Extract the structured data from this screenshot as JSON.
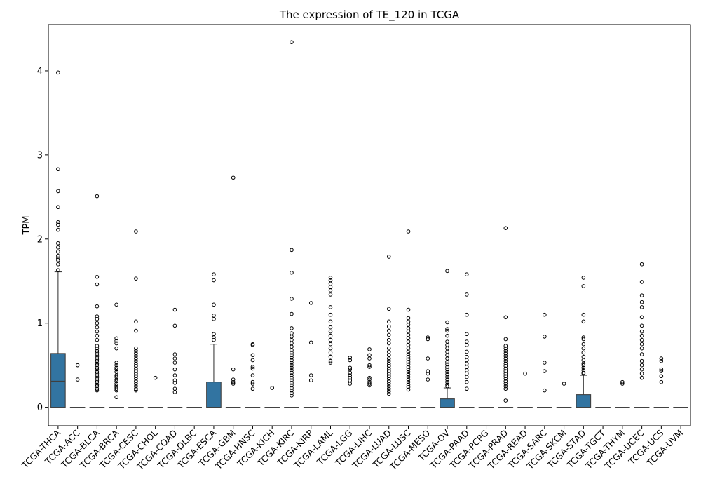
{
  "chart_data": {
    "type": "box",
    "title": "The expression of TE_120 in TCGA",
    "xlabel": "",
    "ylabel": "TPM",
    "ylim": [
      -0.22,
      4.55
    ],
    "yticks": [
      0,
      1,
      2,
      3,
      4
    ],
    "box_color": "#3274a1",
    "categories": [
      "TCGA-THCA",
      "TCGA-ACC",
      "TCGA-BLCA",
      "TCGA-BRCA",
      "TCGA-CESC",
      "TCGA-CHOL",
      "TCGA-COAD",
      "TCGA-DLBC",
      "TCGA-ESCA",
      "TCGA-GBM",
      "TCGA-HNSC",
      "TCGA-KICH",
      "TCGA-KIRC",
      "TCGA-KIRP",
      "TCGA-LAML",
      "TCGA-LGG",
      "TCGA-LIHC",
      "TCGA-LUAD",
      "TCGA-LUSC",
      "TCGA-MESO",
      "TCGA-OV",
      "TCGA-PAAD",
      "TCGA-PCPG",
      "TCGA-PRAD",
      "TCGA-READ",
      "TCGA-SARC",
      "TCGA-SKCM",
      "TCGA-STAD",
      "TCGA-TGCT",
      "TCGA-THYM",
      "TCGA-UCEC",
      "TCGA-UCS",
      "TCGA-UVM"
    ],
    "boxes": [
      {
        "q1": 0,
        "median": 0.31,
        "q3": 0.64,
        "whislo": 0,
        "whishi": 1.61,
        "fliers": [
          3.98,
          2.83,
          2.57,
          2.38,
          2.2,
          2.17,
          2.11,
          1.95,
          1.9,
          1.85,
          1.8,
          1.77,
          1.75,
          1.7,
          1.63
        ]
      },
      {
        "q1": 0,
        "median": 0,
        "q3": 0,
        "whislo": 0,
        "whishi": 0,
        "fliers": [
          0.5,
          0.33
        ]
      },
      {
        "q1": 0,
        "median": 0,
        "q3": 0,
        "whislo": 0,
        "whishi": 0,
        "fliers": [
          2.51,
          1.55,
          1.46,
          1.2,
          1.08,
          1.05,
          1.0,
          0.95,
          0.9,
          0.85,
          0.8,
          0.73,
          0.7,
          0.67,
          0.65,
          0.62,
          0.6,
          0.57,
          0.55,
          0.52,
          0.5,
          0.47,
          0.45,
          0.42,
          0.4,
          0.37,
          0.35,
          0.32,
          0.3,
          0.27,
          0.25,
          0.22,
          0.2
        ]
      },
      {
        "q1": 0,
        "median": 0,
        "q3": 0,
        "whislo": 0,
        "whishi": 0,
        "fliers": [
          1.22,
          0.82,
          0.79,
          0.76,
          0.7,
          0.53,
          0.5,
          0.47,
          0.45,
          0.42,
          0.38,
          0.36,
          0.33,
          0.31,
          0.28,
          0.26,
          0.24,
          0.22,
          0.2,
          0.12
        ]
      },
      {
        "q1": 0,
        "median": 0,
        "q3": 0,
        "whislo": 0,
        "whishi": 0,
        "fliers": [
          2.09,
          1.53,
          1.02,
          0.91,
          0.7,
          0.67,
          0.64,
          0.61,
          0.58,
          0.55,
          0.52,
          0.49,
          0.46,
          0.43,
          0.4,
          0.37,
          0.34,
          0.31,
          0.28,
          0.25,
          0.22,
          0.2
        ]
      },
      {
        "q1": 0,
        "median": 0,
        "q3": 0,
        "whislo": 0,
        "whishi": 0,
        "fliers": [
          0.35
        ]
      },
      {
        "q1": 0,
        "median": 0,
        "q3": 0,
        "whislo": 0,
        "whishi": 0,
        "fliers": [
          1.16,
          0.97,
          0.63,
          0.58,
          0.53,
          0.45,
          0.38,
          0.32,
          0.29,
          0.22,
          0.18
        ]
      },
      {
        "q1": 0,
        "median": 0,
        "q3": 0,
        "whislo": 0,
        "whishi": 0,
        "fliers": []
      },
      {
        "q1": 0,
        "median": 0,
        "q3": 0.3,
        "whislo": 0,
        "whishi": 0.75,
        "fliers": [
          1.58,
          1.51,
          1.22,
          1.09,
          1.05,
          0.87,
          0.83,
          0.8
        ]
      },
      {
        "q1": 0,
        "median": 0,
        "q3": 0,
        "whislo": 0,
        "whishi": 0,
        "fliers": [
          2.73,
          0.45,
          0.33,
          0.3,
          0.28
        ]
      },
      {
        "q1": 0,
        "median": 0,
        "q3": 0,
        "whislo": 0,
        "whishi": 0,
        "fliers": [
          0.75,
          0.74,
          0.62,
          0.56,
          0.48,
          0.46,
          0.38,
          0.3,
          0.28,
          0.22
        ]
      },
      {
        "q1": 0,
        "median": 0,
        "q3": 0,
        "whislo": 0,
        "whishi": 0,
        "fliers": [
          0.23
        ]
      },
      {
        "q1": 0,
        "median": 0,
        "q3": 0,
        "whislo": 0,
        "whishi": 0,
        "fliers": [
          4.34,
          1.87,
          1.6,
          1.29,
          1.11,
          0.94,
          0.88,
          0.84,
          0.8,
          0.76,
          0.72,
          0.68,
          0.65,
          0.62,
          0.59,
          0.56,
          0.53,
          0.5,
          0.47,
          0.44,
          0.41,
          0.38,
          0.35,
          0.32,
          0.29,
          0.26,
          0.23,
          0.2,
          0.17,
          0.14
        ]
      },
      {
        "q1": 0,
        "median": 0,
        "q3": 0,
        "whislo": 0,
        "whishi": 0,
        "fliers": [
          1.24,
          0.77,
          0.38,
          0.32
        ]
      },
      {
        "q1": 0,
        "median": 0,
        "q3": 0,
        "whislo": 0,
        "whishi": 0,
        "fliers": [
          1.54,
          1.51,
          1.47,
          1.43,
          1.39,
          1.34,
          1.19,
          1.1,
          1.02,
          0.95,
          0.9,
          0.85,
          0.8,
          0.75,
          0.7,
          0.65,
          0.6,
          0.55,
          0.53
        ]
      },
      {
        "q1": 0,
        "median": 0,
        "q3": 0,
        "whislo": 0,
        "whishi": 0,
        "fliers": [
          0.59,
          0.56,
          0.47,
          0.45,
          0.41,
          0.38,
          0.35,
          0.32,
          0.28
        ]
      },
      {
        "q1": 0,
        "median": 0,
        "q3": 0,
        "whislo": 0,
        "whishi": 0,
        "fliers": [
          0.69,
          0.62,
          0.58,
          0.5,
          0.48,
          0.35,
          0.33,
          0.3,
          0.28,
          0.26
        ]
      },
      {
        "q1": 0,
        "median": 0,
        "q3": 0,
        "whislo": 0,
        "whishi": 0,
        "fliers": [
          1.79,
          1.17,
          1.02,
          0.96,
          0.91,
          0.86,
          0.8,
          0.76,
          0.7,
          0.66,
          0.62,
          0.58,
          0.55,
          0.52,
          0.49,
          0.46,
          0.43,
          0.4,
          0.37,
          0.34,
          0.31,
          0.28,
          0.25,
          0.22,
          0.19,
          0.16
        ]
      },
      {
        "q1": 0,
        "median": 0,
        "q3": 0,
        "whislo": 0,
        "whishi": 0,
        "fliers": [
          2.09,
          1.16,
          1.06,
          1.02,
          0.98,
          0.94,
          0.9,
          0.86,
          0.82,
          0.78,
          0.74,
          0.7,
          0.66,
          0.63,
          0.6,
          0.57,
          0.54,
          0.51,
          0.48,
          0.45,
          0.42,
          0.39,
          0.36,
          0.33,
          0.3,
          0.27,
          0.24,
          0.21
        ]
      },
      {
        "q1": 0,
        "median": 0,
        "q3": 0,
        "whislo": 0,
        "whishi": 0,
        "fliers": [
          0.83,
          0.81,
          0.58,
          0.43,
          0.4,
          0.33
        ]
      },
      {
        "q1": 0,
        "median": 0,
        "q3": 0.1,
        "whislo": 0,
        "whishi": 0.23,
        "fliers": [
          1.62,
          1.01,
          0.93,
          0.91,
          0.85,
          0.78,
          0.74,
          0.7,
          0.66,
          0.62,
          0.58,
          0.54,
          0.51,
          0.48,
          0.45,
          0.42,
          0.39,
          0.36,
          0.33,
          0.3,
          0.27,
          0.25
        ]
      },
      {
        "q1": 0,
        "median": 0,
        "q3": 0,
        "whislo": 0,
        "whishi": 0,
        "fliers": [
          1.58,
          1.34,
          1.1,
          0.87,
          0.78,
          0.74,
          0.66,
          0.6,
          0.56,
          0.52,
          0.48,
          0.44,
          0.4,
          0.36,
          0.3,
          0.22
        ]
      },
      {
        "q1": 0,
        "median": 0,
        "q3": 0,
        "whislo": 0,
        "whishi": 0,
        "fliers": []
      },
      {
        "q1": 0,
        "median": 0,
        "q3": 0,
        "whislo": 0,
        "whishi": 0,
        "fliers": [
          2.13,
          1.07,
          0.81,
          0.73,
          0.7,
          0.67,
          0.64,
          0.61,
          0.58,
          0.55,
          0.52,
          0.49,
          0.46,
          0.43,
          0.4,
          0.37,
          0.34,
          0.31,
          0.28,
          0.25,
          0.22,
          0.08
        ]
      },
      {
        "q1": 0,
        "median": 0,
        "q3": 0,
        "whislo": 0,
        "whishi": 0,
        "fliers": [
          0.4
        ]
      },
      {
        "q1": 0,
        "median": 0,
        "q3": 0,
        "whislo": 0,
        "whishi": 0,
        "fliers": [
          1.1,
          0.84,
          0.53,
          0.43,
          0.2
        ]
      },
      {
        "q1": 0,
        "median": 0,
        "q3": 0,
        "whislo": 0,
        "whishi": 0,
        "fliers": [
          0.28
        ]
      },
      {
        "q1": 0,
        "median": 0,
        "q3": 0.15,
        "whislo": 0,
        "whishi": 0.38,
        "fliers": [
          1.54,
          1.44,
          1.1,
          1.02,
          0.83,
          0.81,
          0.75,
          0.7,
          0.65,
          0.6,
          0.56,
          0.52,
          0.5,
          0.47,
          0.44,
          0.41,
          0.4
        ]
      },
      {
        "q1": 0,
        "median": 0,
        "q3": 0,
        "whislo": 0,
        "whishi": 0,
        "fliers": []
      },
      {
        "q1": 0,
        "median": 0,
        "q3": 0,
        "whislo": 0,
        "whishi": 0,
        "fliers": [
          0.3,
          0.28
        ]
      },
      {
        "q1": 0,
        "median": 0,
        "q3": 0,
        "whislo": 0,
        "whishi": 0,
        "fliers": [
          1.7,
          1.49,
          1.33,
          1.25,
          1.19,
          1.07,
          0.97,
          0.9,
          0.85,
          0.8,
          0.75,
          0.7,
          0.63,
          0.55,
          0.5,
          0.45,
          0.4,
          0.35
        ]
      },
      {
        "q1": 0,
        "median": 0,
        "q3": 0,
        "whislo": 0,
        "whishi": 0,
        "fliers": [
          0.58,
          0.55,
          0.45,
          0.43,
          0.37,
          0.3
        ]
      },
      {
        "q1": 0,
        "median": 0,
        "q3": 0,
        "whislo": 0,
        "whishi": 0,
        "fliers": []
      }
    ]
  }
}
